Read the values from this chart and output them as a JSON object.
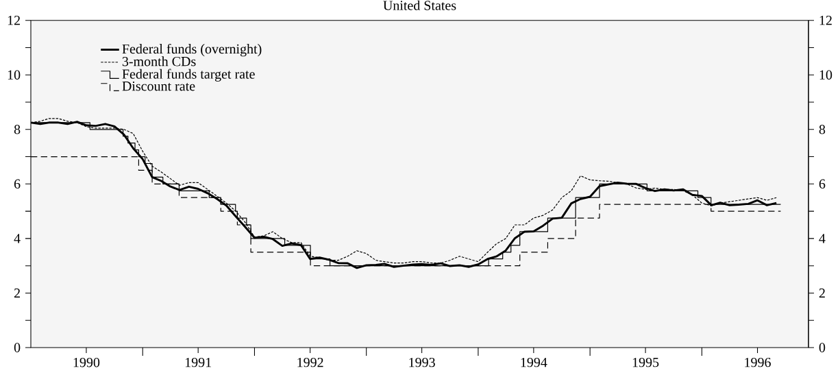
{
  "chart_data": {
    "type": "line",
    "title": "United States",
    "x": [
      "1990-01",
      "1990-02",
      "1990-03",
      "1990-04",
      "1990-05",
      "1990-06",
      "1990-07",
      "1990-08",
      "1990-09",
      "1990-10",
      "1990-11",
      "1990-12",
      "1991-01",
      "1991-02",
      "1991-03",
      "1991-04",
      "1991-05",
      "1991-06",
      "1991-07",
      "1991-08",
      "1991-09",
      "1991-10",
      "1991-11",
      "1991-12",
      "1992-01",
      "1992-02",
      "1992-03",
      "1992-04",
      "1992-05",
      "1992-06",
      "1992-07",
      "1992-08",
      "1992-09",
      "1992-10",
      "1992-11",
      "1992-12",
      "1993-01",
      "1993-02",
      "1993-03",
      "1993-04",
      "1993-05",
      "1993-06",
      "1993-07",
      "1993-08",
      "1993-09",
      "1993-10",
      "1993-11",
      "1993-12",
      "1994-01",
      "1994-02",
      "1994-03",
      "1994-04",
      "1994-05",
      "1994-06",
      "1994-07",
      "1994-08",
      "1994-09",
      "1994-10",
      "1994-11",
      "1994-12",
      "1995-01",
      "1995-02",
      "1995-03",
      "1995-04",
      "1995-05",
      "1995-06",
      "1995-07",
      "1995-08",
      "1995-09",
      "1995-10",
      "1995-11",
      "1995-12",
      "1996-01",
      "1996-02",
      "1996-03",
      "1996-04",
      "1996-05",
      "1996-06",
      "1996-07",
      "1996-08",
      "1996-09"
    ],
    "series": [
      {
        "name": "Federal funds (overnight)",
        "color": "#000000",
        "line_style": "solid",
        "values": [
          8.25,
          8.2,
          8.25,
          8.25,
          8.2,
          8.28,
          8.15,
          8.13,
          8.2,
          8.11,
          7.81,
          7.31,
          6.91,
          6.25,
          6.12,
          5.91,
          5.78,
          5.9,
          5.82,
          5.66,
          5.45,
          5.21,
          4.81,
          4.43,
          4.03,
          4.06,
          3.98,
          3.73,
          3.82,
          3.76,
          3.25,
          3.3,
          3.22,
          3.1,
          3.09,
          2.92,
          3.02,
          3.03,
          3.07,
          2.96,
          3.0,
          3.04,
          3.06,
          3.03,
          3.09,
          2.99,
          3.02,
          2.96,
          3.05,
          3.25,
          3.34,
          3.56,
          4.01,
          4.25,
          4.26,
          4.47,
          4.73,
          4.76,
          5.29,
          5.45,
          5.53,
          5.92,
          5.98,
          6.05,
          6.01,
          6.0,
          5.85,
          5.74,
          5.8,
          5.76,
          5.8,
          5.6,
          5.56,
          5.22,
          5.31,
          5.22,
          5.24,
          5.27,
          5.4,
          5.22,
          5.3
        ]
      },
      {
        "name": "3-month CDs",
        "color": "#000000",
        "line_style": "dotted",
        "values": [
          8.25,
          8.3,
          8.4,
          8.4,
          8.3,
          8.25,
          8.1,
          8.05,
          8.05,
          8.05,
          8.0,
          7.85,
          7.2,
          6.65,
          6.45,
          6.2,
          5.95,
          6.05,
          6.05,
          5.8,
          5.55,
          5.3,
          5.0,
          4.6,
          4.05,
          4.1,
          4.25,
          4.0,
          3.85,
          3.85,
          3.35,
          3.3,
          3.2,
          3.2,
          3.35,
          3.55,
          3.45,
          3.2,
          3.15,
          3.1,
          3.1,
          3.15,
          3.15,
          3.1,
          3.1,
          3.2,
          3.35,
          3.25,
          3.15,
          3.5,
          3.8,
          4.0,
          4.5,
          4.5,
          4.75,
          4.85,
          5.05,
          5.5,
          5.75,
          6.3,
          6.15,
          6.12,
          6.1,
          6.05,
          6.0,
          5.85,
          5.8,
          5.85,
          5.8,
          5.8,
          5.75,
          5.6,
          5.3,
          5.2,
          5.3,
          5.35,
          5.4,
          5.45,
          5.5,
          5.4,
          5.5
        ]
      },
      {
        "name": "Federal funds target rate",
        "type": "step",
        "color": "#000000",
        "line_style": "solid",
        "x": [
          "1990-01-01",
          "1990-07-13",
          "1990-10-29",
          "1990-11-14",
          "1990-12-07",
          "1990-12-19",
          "1991-01-09",
          "1991-02-01",
          "1991-03-08",
          "1991-04-30",
          "1991-08-06",
          "1991-09-13",
          "1991-10-31",
          "1991-11-06",
          "1991-12-06",
          "1991-12-20",
          "1992-04-09",
          "1992-07-02",
          "1992-09-04",
          "1994-02-04",
          "1994-03-22",
          "1994-04-18",
          "1994-05-17",
          "1994-08-16",
          "1994-11-15",
          "1995-02-01",
          "1995-07-06",
          "1995-12-19",
          "1996-01-31",
          "1996-09-15"
        ],
        "values": [
          8.25,
          8.0,
          7.75,
          7.5,
          7.25,
          7.0,
          6.75,
          6.25,
          6.0,
          5.75,
          5.5,
          5.25,
          5.0,
          4.75,
          4.5,
          4.0,
          3.75,
          3.25,
          3.0,
          3.25,
          3.5,
          3.75,
          4.25,
          4.75,
          5.5,
          6.0,
          5.75,
          5.5,
          5.25,
          5.25
        ]
      },
      {
        "name": "Discount rate",
        "type": "step",
        "color": "#000000",
        "line_style": "dashed",
        "x": [
          "1990-01-01",
          "1990-12-19",
          "1991-02-01",
          "1991-04-30",
          "1991-09-13",
          "1991-11-06",
          "1991-12-20",
          "1992-07-02",
          "1994-05-17",
          "1994-08-16",
          "1994-11-15",
          "1995-02-01",
          "1996-01-31",
          "1996-09-15"
        ],
        "values": [
          7.0,
          6.5,
          6.0,
          5.5,
          5.0,
          4.5,
          3.5,
          3.0,
          3.5,
          4.0,
          4.75,
          5.25,
          5.0,
          5.0
        ]
      }
    ],
    "xlim": [
      "1990-01-01",
      "1996-12-15"
    ],
    "xticks": [
      {
        "value": "1990-07-01",
        "label": "1990"
      },
      {
        "value": "1991-01-01",
        "label": null
      },
      {
        "value": "1991-07-01",
        "label": "1991"
      },
      {
        "value": "1992-01-01",
        "label": null
      },
      {
        "value": "1992-07-01",
        "label": "1992"
      },
      {
        "value": "1993-01-01",
        "label": null
      },
      {
        "value": "1993-07-01",
        "label": "1993"
      },
      {
        "value": "1994-01-01",
        "label": null
      },
      {
        "value": "1994-07-01",
        "label": "1994"
      },
      {
        "value": "1995-01-01",
        "label": null
      },
      {
        "value": "1995-07-01",
        "label": "1995"
      },
      {
        "value": "1996-01-01",
        "label": null
      },
      {
        "value": "1996-07-01",
        "label": "1996"
      }
    ],
    "ylim": [
      0,
      12
    ],
    "yticks": [
      0,
      {
        "value": 1,
        "label": null
      },
      2,
      {
        "value": 3,
        "label": null
      },
      4,
      {
        "value": 5,
        "label": null
      },
      6,
      {
        "value": 7,
        "label": null
      },
      8,
      {
        "value": 9,
        "label": null
      },
      10,
      {
        "value": 11,
        "label": null
      },
      12
    ],
    "y2lim": [
      0,
      12
    ],
    "y2ticks": [
      0,
      {
        "value": 1,
        "label": null
      },
      2,
      {
        "value": 3,
        "label": null
      },
      4,
      {
        "value": 5,
        "label": null
      },
      6,
      {
        "value": 7,
        "label": null
      },
      8,
      {
        "value": 9,
        "label": null
      },
      10,
      {
        "value": 11,
        "label": null
      },
      12
    ],
    "legend": "top left",
    "grid": false,
    "marker": "none"
  }
}
